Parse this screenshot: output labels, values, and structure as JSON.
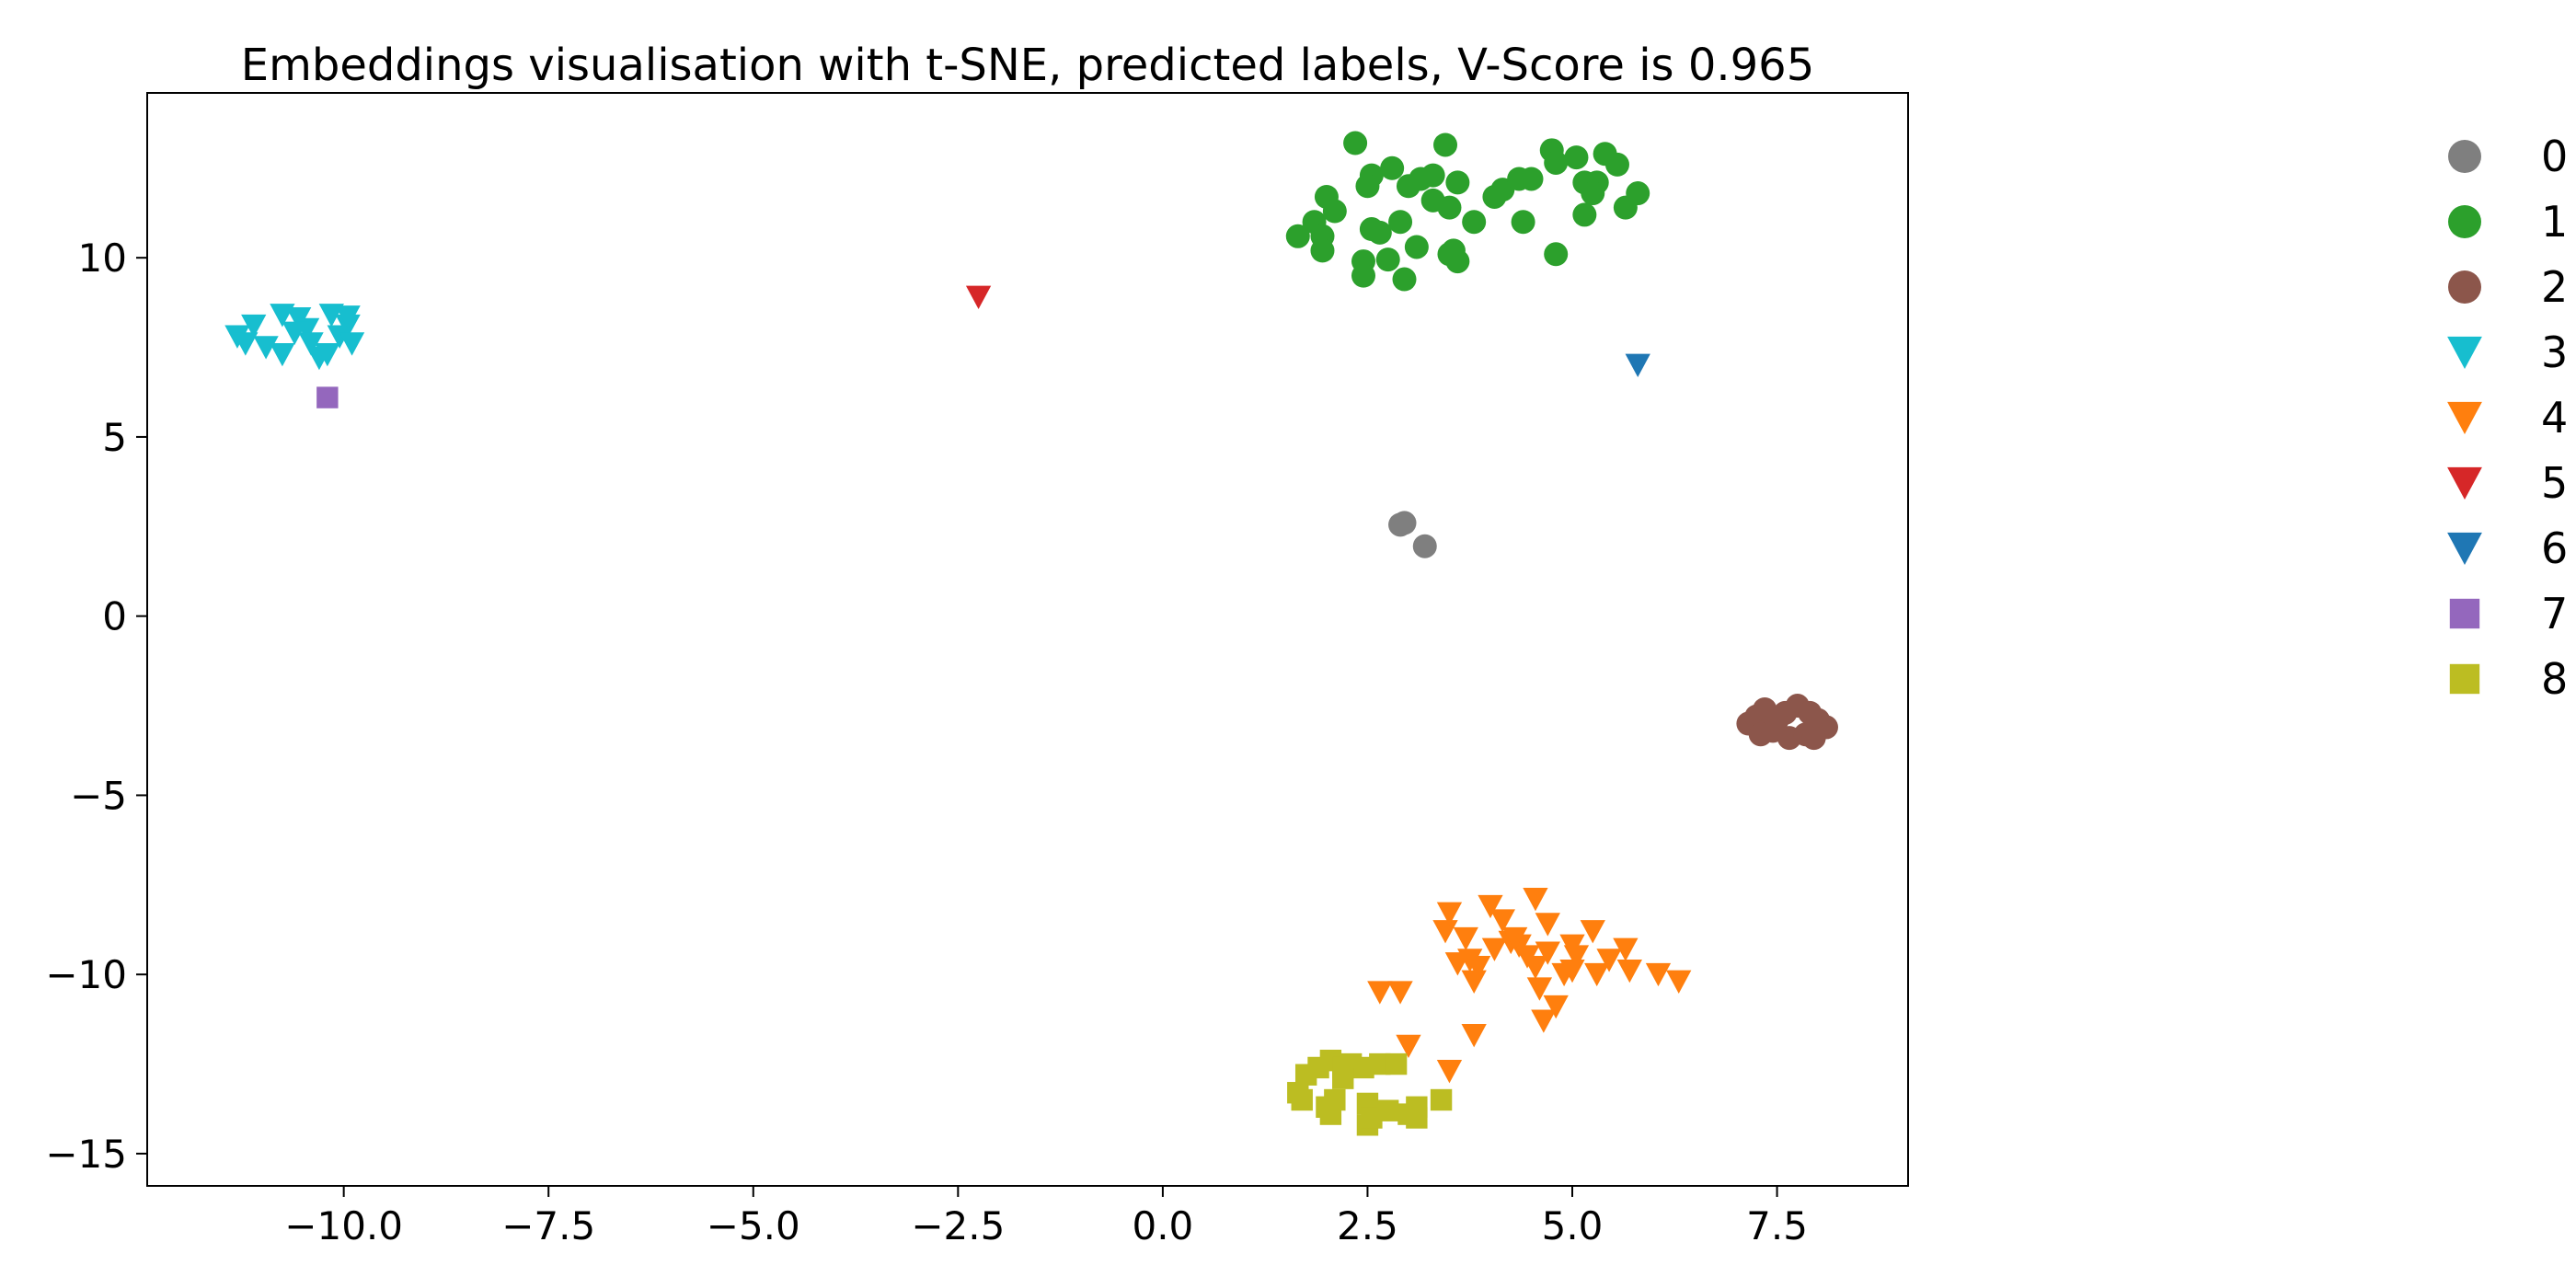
{
  "chart_data": {
    "type": "scatter",
    "title": "Embeddings visualisation with t-SNE, predicted labels, V-Score is 0.965",
    "xlabel": "",
    "ylabel": "",
    "xlim": [
      -12.4,
      9.1
    ],
    "ylim": [
      -15.9,
      14.6
    ],
    "xticks": [
      -10.0,
      -7.5,
      -5.0,
      -2.5,
      0.0,
      2.5,
      5.0,
      7.5
    ],
    "xtick_labels": [
      "−10.0",
      "−7.5",
      "−5.0",
      "−2.5",
      "0.0",
      "2.5",
      "5.0",
      "7.5"
    ],
    "yticks": [
      -15,
      -10,
      -5,
      0,
      5,
      10
    ],
    "ytick_labels": [
      "−15",
      "−10",
      "−5",
      "0",
      "5",
      "10"
    ],
    "grid": false,
    "legend_position": "right-outside",
    "series": [
      {
        "name": "0",
        "marker": "circle",
        "color": "#7f7f7f",
        "points": [
          [
            2.95,
            2.6
          ],
          [
            2.9,
            2.55
          ],
          [
            3.2,
            1.95
          ]
        ]
      },
      {
        "name": "1",
        "marker": "circle",
        "color": "#2ca02c",
        "points": [
          [
            2.35,
            13.2
          ],
          [
            3.45,
            13.15
          ],
          [
            2.55,
            12.3
          ],
          [
            2.8,
            12.5
          ],
          [
            3.0,
            12.0
          ],
          [
            3.15,
            12.2
          ],
          [
            3.3,
            12.3
          ],
          [
            3.6,
            12.1
          ],
          [
            2.5,
            12.0
          ],
          [
            2.0,
            11.7
          ],
          [
            2.1,
            11.3
          ],
          [
            1.85,
            11.0
          ],
          [
            1.95,
            10.6
          ],
          [
            1.65,
            10.6
          ],
          [
            1.95,
            10.2
          ],
          [
            2.55,
            10.8
          ],
          [
            2.9,
            11.0
          ],
          [
            2.65,
            10.7
          ],
          [
            3.3,
            11.6
          ],
          [
            3.5,
            11.4
          ],
          [
            3.8,
            11.0
          ],
          [
            4.05,
            11.7
          ],
          [
            4.15,
            11.9
          ],
          [
            4.35,
            12.2
          ],
          [
            4.5,
            12.2
          ],
          [
            4.75,
            13.0
          ],
          [
            4.8,
            12.65
          ],
          [
            5.05,
            12.8
          ],
          [
            5.4,
            12.9
          ],
          [
            5.55,
            12.6
          ],
          [
            5.15,
            12.1
          ],
          [
            5.3,
            12.1
          ],
          [
            5.25,
            11.8
          ],
          [
            5.15,
            11.2
          ],
          [
            5.8,
            11.8
          ],
          [
            5.65,
            11.4
          ],
          [
            4.4,
            11.0
          ],
          [
            4.8,
            10.1
          ],
          [
            2.45,
            9.9
          ],
          [
            2.45,
            9.5
          ],
          [
            2.75,
            9.95
          ],
          [
            2.95,
            9.4
          ],
          [
            3.1,
            10.3
          ],
          [
            3.5,
            10.1
          ],
          [
            3.55,
            10.2
          ],
          [
            3.6,
            9.9
          ]
        ]
      },
      {
        "name": "2",
        "marker": "circle",
        "color": "#8c564b",
        "points": [
          [
            7.15,
            -3.0
          ],
          [
            7.25,
            -2.8
          ],
          [
            7.35,
            -2.6
          ],
          [
            7.3,
            -3.3
          ],
          [
            7.45,
            -3.2
          ],
          [
            7.6,
            -2.7
          ],
          [
            7.65,
            -3.4
          ],
          [
            7.75,
            -2.5
          ],
          [
            7.85,
            -3.3
          ],
          [
            7.9,
            -2.7
          ],
          [
            8.0,
            -2.9
          ],
          [
            8.1,
            -3.1
          ],
          [
            7.5,
            -2.9
          ],
          [
            7.95,
            -3.4
          ]
        ]
      },
      {
        "name": "3",
        "marker": "triangle-down",
        "color": "#17becf",
        "points": [
          [
            -11.3,
            7.8
          ],
          [
            -11.1,
            8.1
          ],
          [
            -10.95,
            7.5
          ],
          [
            -10.75,
            8.4
          ],
          [
            -10.75,
            7.3
          ],
          [
            -10.55,
            8.3
          ],
          [
            -10.45,
            8.0
          ],
          [
            -10.4,
            7.6
          ],
          [
            -10.3,
            7.2
          ],
          [
            -10.15,
            8.4
          ],
          [
            -10.05,
            7.8
          ],
          [
            -9.95,
            8.1
          ],
          [
            -9.9,
            7.6
          ],
          [
            -10.2,
            7.3
          ],
          [
            -10.6,
            7.9
          ],
          [
            -11.2,
            7.6
          ],
          [
            -9.95,
            8.35
          ]
        ]
      },
      {
        "name": "4",
        "marker": "triangle-down",
        "color": "#ff7f0e",
        "points": [
          [
            3.45,
            -8.8
          ],
          [
            3.5,
            -8.3
          ],
          [
            3.6,
            -9.7
          ],
          [
            3.7,
            -9.0
          ],
          [
            3.75,
            -9.6
          ],
          [
            3.8,
            -10.2
          ],
          [
            3.85,
            -9.8
          ],
          [
            4.0,
            -8.1
          ],
          [
            4.05,
            -9.3
          ],
          [
            4.15,
            -8.5
          ],
          [
            4.25,
            -9.1
          ],
          [
            4.35,
            -9.2
          ],
          [
            4.45,
            -9.5
          ],
          [
            4.55,
            -7.9
          ],
          [
            4.55,
            -9.8
          ],
          [
            4.6,
            -10.4
          ],
          [
            4.7,
            -8.6
          ],
          [
            4.7,
            -9.4
          ],
          [
            4.8,
            -10.9
          ],
          [
            4.9,
            -10.0
          ],
          [
            4.65,
            -11.3
          ],
          [
            5.0,
            -9.2
          ],
          [
            5.05,
            -9.5
          ],
          [
            5.0,
            -9.9
          ],
          [
            5.25,
            -8.8
          ],
          [
            5.3,
            -10.0
          ],
          [
            5.45,
            -9.6
          ],
          [
            5.65,
            -9.3
          ],
          [
            5.7,
            -9.9
          ],
          [
            6.05,
            -10.0
          ],
          [
            6.3,
            -10.2
          ],
          [
            3.8,
            -11.7
          ],
          [
            2.65,
            -10.5
          ],
          [
            2.9,
            -10.5
          ],
          [
            3.0,
            -12.0
          ],
          [
            3.5,
            -12.7
          ],
          [
            4.3,
            -9.0
          ]
        ]
      },
      {
        "name": "5",
        "marker": "triangle-down",
        "color": "#d62728",
        "points": [
          [
            -2.25,
            8.9
          ]
        ]
      },
      {
        "name": "6",
        "marker": "triangle-down",
        "color": "#1f77b4",
        "points": [
          [
            5.8,
            7.0
          ]
        ]
      },
      {
        "name": "7",
        "marker": "square",
        "color": "#9467bd",
        "points": [
          [
            -10.2,
            6.1
          ]
        ]
      },
      {
        "name": "8",
        "marker": "square",
        "color": "#bcbd22",
        "points": [
          [
            1.65,
            -13.3
          ],
          [
            1.7,
            -13.5
          ],
          [
            1.75,
            -12.8
          ],
          [
            1.9,
            -12.6
          ],
          [
            2.05,
            -12.4
          ],
          [
            2.05,
            -13.9
          ],
          [
            2.1,
            -13.5
          ],
          [
            2.2,
            -12.6
          ],
          [
            2.3,
            -12.5
          ],
          [
            2.45,
            -12.6
          ],
          [
            2.5,
            -13.6
          ],
          [
            2.5,
            -14.2
          ],
          [
            2.55,
            -14.0
          ],
          [
            2.65,
            -12.5
          ],
          [
            2.75,
            -13.8
          ],
          [
            2.85,
            -12.5
          ],
          [
            3.0,
            -13.9
          ],
          [
            3.1,
            -14.0
          ],
          [
            3.1,
            -13.7
          ],
          [
            3.4,
            -13.5
          ],
          [
            2.2,
            -12.9
          ],
          [
            2.0,
            -13.7
          ]
        ]
      }
    ]
  }
}
